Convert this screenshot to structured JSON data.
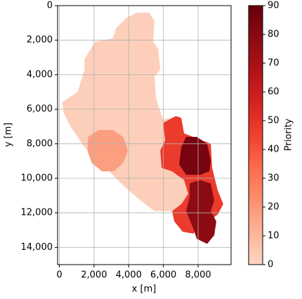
{
  "chart_data": {
    "type": "raster",
    "xlabel": "x [m]",
    "ylabel": "y [m]",
    "colorbar_label": "Priority",
    "xlim": [
      -100,
      9900
    ],
    "ylim": [
      15000,
      0
    ],
    "xticks": [
      0,
      {
        "value": 2000,
        "label": "2,000"
      },
      {
        "value": 4000,
        "label": "4,000"
      },
      {
        "value": 6000,
        "label": "6,000"
      },
      {
        "value": 8000,
        "label": "8,000"
      }
    ],
    "yticks": [
      0,
      {
        "value": 2000,
        "label": "2,000"
      },
      {
        "value": 4000,
        "label": "4,000"
      },
      {
        "value": 6000,
        "label": "6,000"
      },
      {
        "value": 8000,
        "label": "8,000"
      },
      {
        "value": 10000,
        "label": "10,000"
      },
      {
        "value": 12000,
        "label": "12,000"
      },
      {
        "value": 14000,
        "label": "14,000"
      }
    ],
    "grid": true,
    "colorbar_lim": [
      0,
      90
    ],
    "colorbar_ticks": [
      0,
      10,
      20,
      30,
      40,
      50,
      60,
      70,
      80,
      90
    ],
    "colormap": [
      "#fdd5c2",
      "#fcb499",
      "#fc8f6f",
      "#fb6b4b",
      "#f0402f",
      "#d52221",
      "#b11218",
      "#8a0a12",
      "#67000d"
    ],
    "regions": [
      {
        "value": 2,
        "outline": [
          [
            4480,
            400
          ],
          [
            5170,
            400
          ],
          [
            5490,
            900
          ],
          [
            5410,
            2100
          ],
          [
            5700,
            2500
          ],
          [
            5820,
            3700
          ],
          [
            5490,
            4100
          ],
          [
            5580,
            5400
          ],
          [
            5980,
            6600
          ],
          [
            6910,
            6400
          ],
          [
            7030,
            9000
          ],
          [
            7510,
            10100
          ],
          [
            7600,
            10700
          ],
          [
            7430,
            11500
          ],
          [
            6910,
            11900
          ],
          [
            5490,
            11900
          ],
          [
            4690,
            11300
          ],
          [
            3880,
            10600
          ],
          [
            3070,
            9800
          ],
          [
            2260,
            9000
          ],
          [
            1450,
            8200
          ],
          [
            650,
            7000
          ],
          [
            240,
            6200
          ],
          [
            160,
            5600
          ],
          [
            1050,
            5000
          ],
          [
            1450,
            3700
          ],
          [
            1450,
            3100
          ],
          [
            2060,
            2100
          ],
          [
            3070,
            1900
          ],
          [
            3270,
            1300
          ],
          [
            3880,
            700
          ]
        ]
      },
      {
        "value": 18,
        "outline": [
          [
            1660,
            7600
          ],
          [
            2260,
            7200
          ],
          [
            3070,
            7200
          ],
          [
            3680,
            7600
          ],
          [
            3960,
            8400
          ],
          [
            3680,
            9100
          ],
          [
            3150,
            9600
          ],
          [
            2460,
            9600
          ],
          [
            1860,
            9100
          ],
          [
            1620,
            8400
          ]
        ]
      },
      {
        "value": 47,
        "outline": [
          [
            5980,
            6800
          ],
          [
            6710,
            6400
          ],
          [
            7030,
            6500
          ],
          [
            7190,
            7400
          ],
          [
            8730,
            8000
          ],
          [
            8810,
            9400
          ],
          [
            9130,
            10700
          ],
          [
            9450,
            11500
          ],
          [
            9130,
            12100
          ],
          [
            8320,
            12700
          ],
          [
            7720,
            13200
          ],
          [
            7110,
            13100
          ],
          [
            6630,
            12500
          ],
          [
            6500,
            11900
          ],
          [
            7030,
            11500
          ],
          [
            7430,
            10900
          ],
          [
            7190,
            10100
          ],
          [
            6500,
            9600
          ],
          [
            5900,
            9400
          ],
          [
            5820,
            8400
          ],
          [
            6100,
            7800
          ]
        ]
      },
      {
        "value": 85,
        "outline": [
          [
            7030,
            8200
          ],
          [
            7310,
            7600
          ],
          [
            7920,
            7600
          ],
          [
            8520,
            8000
          ],
          [
            8730,
            9000
          ],
          [
            8650,
            9600
          ],
          [
            8120,
            9800
          ],
          [
            7310,
            9800
          ],
          [
            6910,
            9200
          ]
        ]
      },
      {
        "value": 78,
        "outline": [
          [
            7510,
            10300
          ],
          [
            8120,
            10100
          ],
          [
            8730,
            10300
          ],
          [
            8930,
            11300
          ],
          [
            8730,
            11900
          ],
          [
            9050,
            12500
          ],
          [
            8930,
            13300
          ],
          [
            8520,
            13800
          ],
          [
            7920,
            13500
          ],
          [
            7720,
            12900
          ],
          [
            7310,
            11900
          ],
          [
            7510,
            11100
          ]
        ]
      }
    ]
  }
}
